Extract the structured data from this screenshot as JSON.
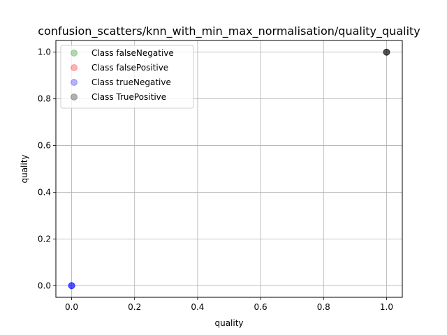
{
  "chart_data": {
    "type": "scatter",
    "title": "confusion_scatters/knn_with_min_max_normalisation/quality_quality",
    "xlabel": "quality",
    "ylabel": "quality",
    "xlim": [
      -0.05,
      1.05
    ],
    "ylim": [
      -0.05,
      1.05
    ],
    "xticks": [
      0.0,
      0.2,
      0.4,
      0.6,
      0.8,
      1.0
    ],
    "yticks": [
      0.0,
      0.2,
      0.4,
      0.6,
      0.8,
      1.0
    ],
    "xtick_labels": [
      "0.0",
      "0.2",
      "0.4",
      "0.6",
      "0.8",
      "1.0"
    ],
    "ytick_labels": [
      "0.0",
      "0.2",
      "0.4",
      "0.6",
      "0.8",
      "1.0"
    ],
    "grid": true,
    "legend_position": "top-left",
    "series": [
      {
        "name": "Class falseNegative",
        "color": "#008000",
        "alpha": 0.3,
        "points": []
      },
      {
        "name": "Class falsePositive",
        "color": "#ff0000",
        "alpha": 0.3,
        "points": []
      },
      {
        "name": "Class trueNegative",
        "color": "#0000ff",
        "alpha": 0.3,
        "points": [
          [
            0.0,
            0.0
          ],
          [
            0.0,
            0.0
          ],
          [
            0.0,
            0.0
          ]
        ]
      },
      {
        "name": "Class TruePositive",
        "color": "#000000",
        "alpha": 0.3,
        "points": [
          [
            1.0,
            1.0
          ],
          [
            1.0,
            1.0
          ],
          [
            1.0,
            1.0
          ]
        ]
      }
    ]
  }
}
